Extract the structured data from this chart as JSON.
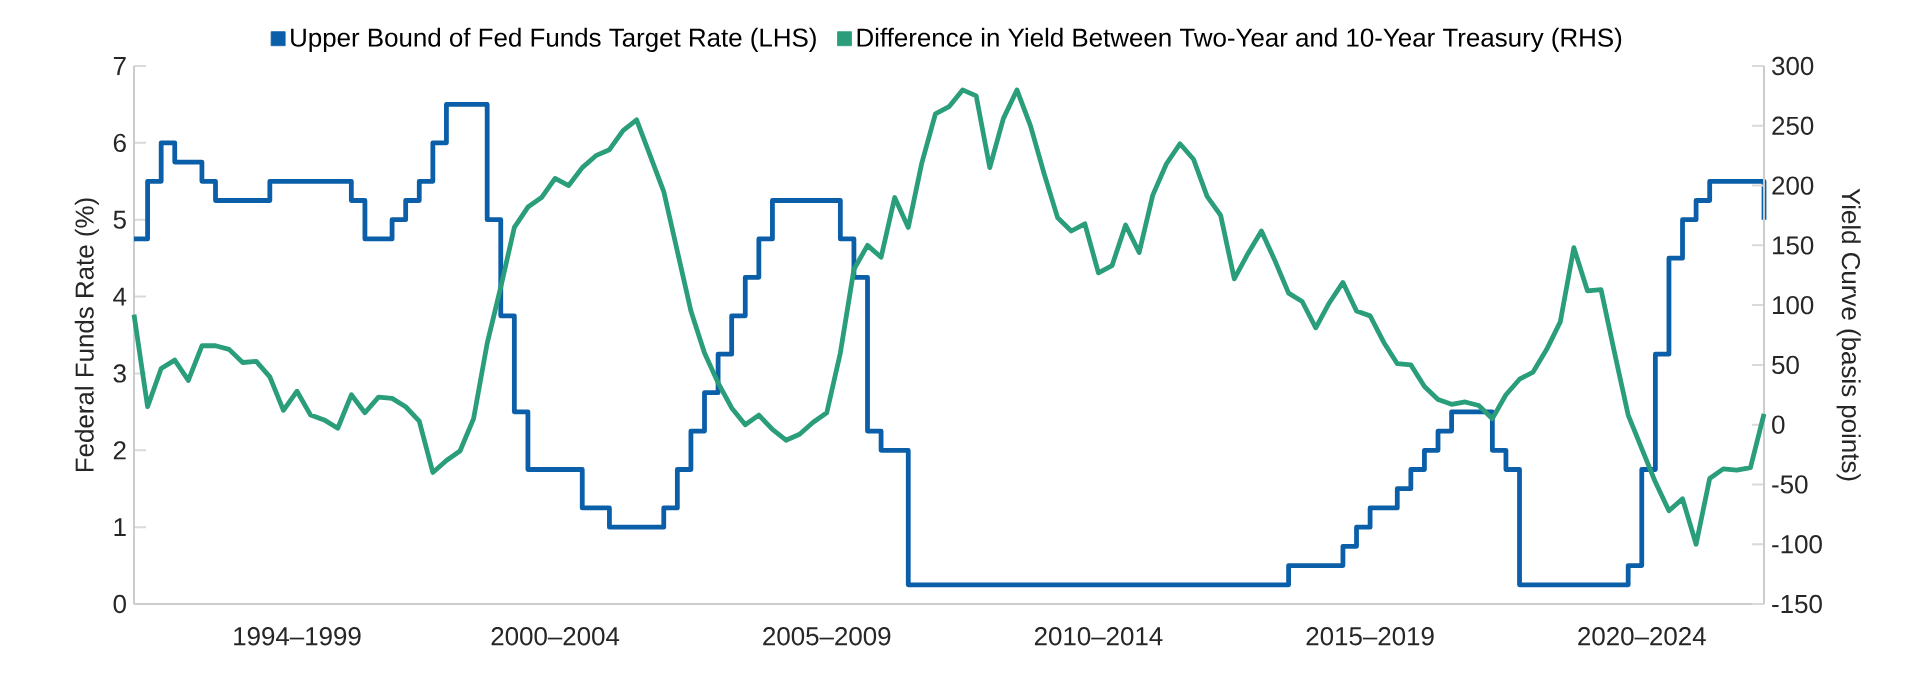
{
  "chart_data": {
    "type": "line",
    "legend": "top",
    "ylabel": "Federal Funds Rate (%)",
    "y2label": "Yield Curve (basis points)",
    "categories": [
      null,
      null,
      null,
      null,
      null,
      null,
      null,
      null,
      null,
      null,
      null,
      null,
      "1994–1999",
      null,
      null,
      null,
      null,
      null,
      null,
      null,
      null,
      null,
      null,
      null,
      null,
      null,
      null,
      null,
      null,
      null,
      null,
      "2000–2004",
      null,
      null,
      null,
      null,
      null,
      null,
      null,
      null,
      null,
      null,
      null,
      null,
      null,
      null,
      null,
      null,
      null,
      null,
      null,
      "2005–2009",
      null,
      null,
      null,
      null,
      null,
      null,
      null,
      null,
      null,
      null,
      null,
      null,
      null,
      null,
      null,
      null,
      null,
      null,
      null,
      "2010–2014",
      null,
      null,
      null,
      null,
      null,
      null,
      null,
      null,
      null,
      null,
      null,
      null,
      null,
      null,
      null,
      null,
      null,
      null,
      null,
      "2015–2019",
      null,
      null,
      null,
      null,
      null,
      null,
      null,
      null,
      null,
      null,
      null,
      null,
      null,
      null,
      null,
      null,
      null,
      null,
      null,
      "2020–2024",
      null,
      null,
      null,
      null,
      null,
      null,
      null,
      null,
      null
    ],
    "ylim": [
      0,
      7
    ],
    "yticks": [
      0,
      1,
      2,
      3,
      4,
      5,
      6,
      7
    ],
    "y2lim": [
      -150,
      300
    ],
    "y2ticks": [
      -150,
      -100,
      -50,
      0,
      50,
      100,
      150,
      200,
      250,
      300
    ],
    "series": [
      {
        "name": "Upper Bound of Fed Funds Target Rate (LHS)",
        "type": "step",
        "color": "#0b5fa8",
        "values": [
          4.75,
          5.5,
          6.0,
          5.75,
          5.75,
          5.5,
          5.25,
          5.25,
          5.25,
          5.25,
          5.5,
          5.5,
          5.5,
          5.5,
          5.5,
          5.5,
          5.25,
          4.75,
          4.75,
          5.0,
          5.25,
          5.5,
          6.0,
          6.5,
          6.5,
          6.5,
          5.0,
          3.75,
          2.5,
          1.75,
          1.75,
          1.75,
          1.75,
          1.25,
          1.25,
          1.0,
          1.0,
          1.0,
          1.0,
          1.25,
          1.75,
          2.25,
          2.75,
          3.25,
          3.75,
          4.25,
          4.75,
          5.25,
          5.25,
          5.25,
          5.25,
          5.25,
          4.75,
          4.25,
          2.25,
          2.0,
          2.0,
          0.25,
          0.25,
          0.25,
          0.25,
          0.25,
          0.25,
          0.25,
          0.25,
          0.25,
          0.25,
          0.25,
          0.25,
          0.25,
          0.25,
          0.25,
          0.25,
          0.25,
          0.25,
          0.25,
          0.25,
          0.25,
          0.25,
          0.25,
          0.25,
          0.25,
          0.25,
          0.25,
          0.25,
          0.5,
          0.5,
          0.5,
          0.5,
          0.75,
          1.0,
          1.25,
          1.25,
          1.5,
          1.75,
          2.0,
          2.25,
          2.5,
          2.5,
          2.5,
          2.0,
          1.75,
          0.25,
          0.25,
          0.25,
          0.25,
          0.25,
          0.25,
          0.25,
          0.25,
          0.5,
          1.75,
          3.25,
          4.5,
          5.0,
          5.25,
          5.5,
          5.5,
          5.5,
          5.5,
          5.0
        ]
      },
      {
        "name": "Difference in Yield Between Two-Year and 10-Year Treasury (RHS)",
        "color": "#2a9d7a",
        "axis": "y2",
        "values": [
          92,
          15,
          47,
          54,
          37,
          66,
          66,
          63,
          52,
          53,
          40,
          12,
          28,
          8,
          4,
          -3,
          25,
          10,
          23,
          22,
          15,
          3,
          -40,
          -30,
          -22,
          5,
          68,
          115,
          165,
          182,
          190,
          206,
          200,
          215,
          225,
          230,
          246,
          255,
          225,
          195,
          145,
          95,
          60,
          35,
          14,
          0,
          8,
          -4,
          -13,
          -8,
          2,
          10,
          60,
          130,
          150,
          140,
          190,
          165,
          219,
          260,
          266,
          280,
          275,
          215,
          256,
          280,
          250,
          210,
          173,
          162,
          168,
          127,
          133,
          167,
          144,
          192,
          218,
          235,
          222,
          191,
          175,
          122,
          143,
          162,
          137,
          110,
          103,
          81,
          102,
          119,
          95,
          91,
          69,
          51,
          50,
          32,
          21,
          17,
          19,
          16,
          5,
          25,
          38,
          44,
          63,
          86,
          148,
          112,
          113,
          60,
          8,
          -20,
          -48,
          -72,
          -62,
          -100,
          -45,
          -37,
          -38,
          -36,
          9
        ]
      }
    ]
  }
}
